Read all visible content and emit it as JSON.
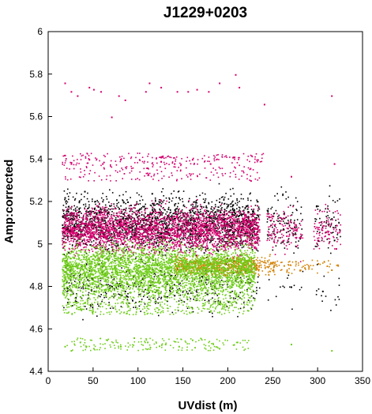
{
  "chart_data": {
    "type": "scatter",
    "title": "J1229+0203",
    "xlabel": "UVdist (m)",
    "ylabel": "Amp:corrected",
    "xlim": [
      0,
      350
    ],
    "ylim": [
      4.4,
      6.0
    ],
    "x_ticks": [
      "0",
      "50",
      "100",
      "150",
      "200",
      "250",
      "300",
      "350"
    ],
    "y_ticks": [
      "4.4",
      "4.6",
      "4.8",
      "5",
      "5.2",
      "5.4",
      "5.6",
      "5.8",
      "6"
    ],
    "grid": false,
    "legend": "none",
    "series": [
      {
        "color": "#000000",
        "points": [
          [
            18,
            5.22
          ],
          [
            25,
            5.15
          ],
          [
            40,
            5.25
          ],
          [
            55,
            5.18
          ],
          [
            70,
            5.05
          ],
          [
            88,
            5.2
          ],
          [
            100,
            5.12
          ],
          [
            115,
            5.24
          ],
          [
            130,
            5.08
          ],
          [
            145,
            5.22
          ],
          [
            160,
            5.16
          ],
          [
            175,
            5.1
          ],
          [
            190,
            5.2
          ],
          [
            205,
            5.14
          ],
          [
            220,
            5.18
          ],
          [
            232,
            5.06
          ],
          [
            260,
            5.12
          ],
          [
            272,
            5.05
          ],
          [
            298,
            5.18
          ],
          [
            318,
            5.02
          ],
          [
            30,
            4.75
          ],
          [
            85,
            4.78
          ],
          [
            140,
            4.76
          ],
          [
            200,
            4.73
          ],
          [
            270,
            4.8
          ],
          [
            305,
            4.78
          ]
        ]
      },
      {
        "color": "#d4006e",
        "points": [
          [
            18,
            5.76
          ],
          [
            25,
            5.72
          ],
          [
            32,
            5.7
          ],
          [
            45,
            5.74
          ],
          [
            50,
            5.73
          ],
          [
            58,
            5.72
          ],
          [
            70,
            5.6
          ],
          [
            78,
            5.7
          ],
          [
            85,
            5.68
          ],
          [
            108,
            5.72
          ],
          [
            112,
            5.76
          ],
          [
            125,
            5.74
          ],
          [
            143,
            5.72
          ],
          [
            155,
            5.72
          ],
          [
            165,
            5.73
          ],
          [
            178,
            5.72
          ],
          [
            190,
            5.76
          ],
          [
            208,
            5.8
          ],
          [
            212,
            5.74
          ],
          [
            240,
            5.66
          ],
          [
            315,
            5.7
          ],
          [
            18,
            5.42
          ],
          [
            25,
            5.38
          ],
          [
            45,
            5.4
          ],
          [
            60,
            5.38
          ],
          [
            80,
            5.4
          ],
          [
            110,
            5.36
          ],
          [
            125,
            5.39
          ],
          [
            140,
            5.38
          ],
          [
            160,
            5.4
          ],
          [
            180,
            5.38
          ],
          [
            205,
            5.41
          ],
          [
            225,
            5.3
          ],
          [
            270,
            5.32
          ],
          [
            318,
            5.38
          ],
          [
            20,
            5.08
          ],
          [
            40,
            5.1
          ],
          [
            60,
            5.05
          ],
          [
            80,
            5.12
          ],
          [
            100,
            5.06
          ],
          [
            120,
            5.1
          ],
          [
            140,
            5.04
          ],
          [
            160,
            5.08
          ],
          [
            180,
            5.02
          ],
          [
            200,
            5.06
          ],
          [
            220,
            5.0
          ],
          [
            265,
            5.04
          ],
          [
            300,
            5.02
          ],
          [
            320,
            4.98
          ]
        ]
      },
      {
        "color": "#d28000",
        "points": [
          [
            150,
            4.9
          ],
          [
            170,
            4.92
          ],
          [
            190,
            4.88
          ],
          [
            210,
            4.91
          ],
          [
            230,
            4.89
          ],
          [
            250,
            4.88
          ],
          [
            262,
            4.9
          ],
          [
            275,
            4.92
          ],
          [
            285,
            4.89
          ],
          [
            300,
            4.91
          ],
          [
            315,
            4.88
          ],
          [
            322,
            4.9
          ]
        ]
      },
      {
        "color": "#6fcd1a",
        "points": [
          [
            18,
            4.52
          ],
          [
            25,
            4.5
          ],
          [
            35,
            4.54
          ],
          [
            50,
            4.51
          ],
          [
            65,
            4.55
          ],
          [
            80,
            4.52
          ],
          [
            95,
            4.56
          ],
          [
            110,
            4.54
          ],
          [
            130,
            4.53
          ],
          [
            145,
            4.52
          ],
          [
            160,
            4.55
          ],
          [
            190,
            4.51
          ],
          [
            210,
            4.54
          ],
          [
            270,
            4.53
          ],
          [
            315,
            4.5
          ],
          [
            20,
            4.92
          ],
          [
            35,
            4.88
          ],
          [
            50,
            4.95
          ],
          [
            65,
            4.86
          ],
          [
            80,
            4.93
          ],
          [
            95,
            4.89
          ],
          [
            110,
            4.94
          ],
          [
            125,
            4.87
          ],
          [
            140,
            4.91
          ],
          [
            155,
            4.9
          ],
          [
            170,
            4.85
          ],
          [
            200,
            4.88
          ],
          [
            225,
            4.9
          ],
          [
            20,
            4.8
          ],
          [
            50,
            4.78
          ],
          [
            80,
            4.8
          ],
          [
            110,
            4.79
          ],
          [
            140,
            4.81
          ],
          [
            170,
            4.77
          ],
          [
            215,
            4.8
          ]
        ]
      }
    ]
  }
}
